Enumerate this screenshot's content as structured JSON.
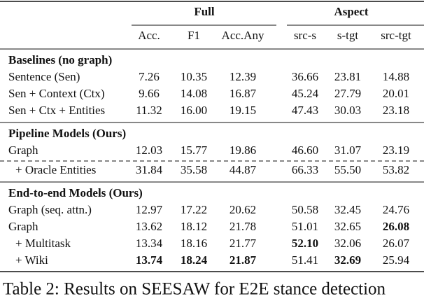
{
  "header": {
    "groups": [
      "Full",
      "Aspect"
    ],
    "columns": [
      "Acc.",
      "F1",
      "Acc.Any",
      "src-s",
      "s-tgt",
      "src-tgt"
    ]
  },
  "sections": [
    {
      "title": "Baselines (no graph)",
      "rows": [
        {
          "label": "Sentence (Sen)",
          "cells": [
            "7.26",
            "10.35",
            "12.39",
            "36.66",
            "23.81",
            "14.88"
          ],
          "bold": []
        },
        {
          "label": "Sen + Context (Ctx)",
          "cells": [
            "9.66",
            "14.08",
            "16.87",
            "45.24",
            "27.79",
            "20.01"
          ],
          "bold": []
        },
        {
          "label": "Sen + Ctx + Entities",
          "cells": [
            "11.32",
            "16.00",
            "19.15",
            "47.43",
            "30.03",
            "23.18"
          ],
          "bold": []
        }
      ]
    },
    {
      "title": "Pipeline Models (Ours)",
      "rows": [
        {
          "label": "Graph",
          "cells": [
            "12.03",
            "15.77",
            "19.86",
            "46.60",
            "31.07",
            "23.19"
          ],
          "bold": []
        },
        {
          "label": "+ Oracle Entities",
          "cells": [
            "31.84",
            "35.58",
            "44.87",
            "66.33",
            "55.50",
            "53.82"
          ],
          "bold": [],
          "dashed_above": true
        }
      ]
    },
    {
      "title": "End-to-end Models (Ours)",
      "rows": [
        {
          "label": "Graph (seq. attn.)",
          "cells": [
            "12.97",
            "17.22",
            "20.62",
            "50.58",
            "32.45",
            "24.76"
          ],
          "bold": []
        },
        {
          "label": "Graph",
          "cells": [
            "13.62",
            "18.12",
            "21.78",
            "51.01",
            "32.65",
            "26.08"
          ],
          "bold": [
            5
          ]
        },
        {
          "label": "+ Multitask",
          "cells": [
            "13.34",
            "18.16",
            "21.77",
            "52.10",
            "32.06",
            "26.07"
          ],
          "bold": [
            3
          ]
        },
        {
          "label": "+ Wiki",
          "cells": [
            "13.74",
            "18.24",
            "21.87",
            "51.41",
            "32.69",
            "25.94"
          ],
          "bold": [
            0,
            1,
            2,
            4
          ]
        }
      ]
    }
  ],
  "caption": "Table 2: Results on SEESAW for E2E stance detection"
}
